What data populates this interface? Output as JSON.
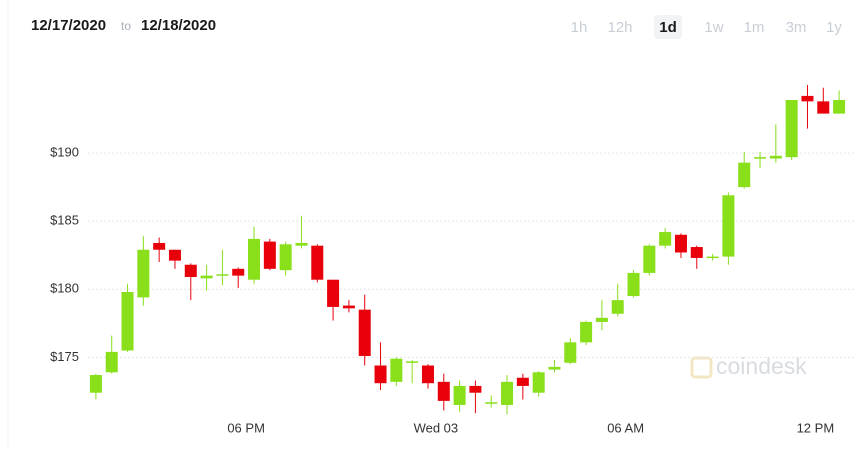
{
  "header": {
    "from": "12/17/2020",
    "separator": "to",
    "to": "12/18/2020",
    "ranges": [
      "1h",
      "12h",
      "1d",
      "1w",
      "1m",
      "3m",
      "1y"
    ],
    "active_range": "1d"
  },
  "chart_data": {
    "type": "candlestick",
    "categories": [
      null,
      null,
      null,
      null,
      null,
      null,
      null,
      null,
      null,
      null,
      "06 PM",
      null,
      null,
      null,
      null,
      null,
      null,
      null,
      null,
      null,
      null,
      null,
      "Wed 03",
      null,
      null,
      null,
      null,
      null,
      null,
      null,
      null,
      null,
      null,
      null,
      "06 AM",
      null,
      null,
      null,
      null,
      null,
      null,
      null,
      null,
      null,
      null,
      null,
      "12 PM",
      null
    ],
    "open": [
      172.4,
      173.9,
      175.5,
      179.4,
      183.4,
      182.9,
      181.8,
      180.8,
      181.0,
      181.5,
      180.7,
      183.5,
      181.4,
      183.2,
      183.2,
      180.7,
      178.8,
      178.5,
      174.4,
      173.2,
      174.6,
      174.4,
      173.2,
      171.5,
      172.9,
      171.6,
      171.5,
      173.5,
      172.4,
      174.1,
      174.6,
      176.1,
      177.6,
      178.2,
      179.5,
      181.2,
      183.2,
      184.0,
      183.1,
      182.3,
      182.4,
      187.5,
      189.6,
      189.6,
      189.7,
      194.2,
      193.8,
      192.9
    ],
    "high": [
      173.8,
      176.6,
      180.4,
      183.9,
      183.8,
      182.9,
      181.9,
      181.8,
      182.9,
      181.6,
      184.6,
      183.7,
      183.5,
      185.4,
      183.3,
      180.7,
      179.2,
      179.6,
      176.1,
      175.0,
      174.8,
      174.5,
      173.8,
      173.3,
      173.3,
      172.2,
      173.7,
      173.8,
      174.0,
      174.8,
      176.4,
      177.7,
      179.2,
      180.4,
      181.4,
      183.3,
      184.5,
      184.1,
      183.2,
      182.6,
      187.1,
      190.1,
      190.1,
      192.1,
      193.9,
      195.0,
      194.8,
      194.6
    ],
    "low": [
      171.9,
      173.8,
      175.4,
      178.8,
      182.0,
      181.5,
      179.2,
      179.9,
      180.3,
      180.1,
      180.4,
      181.4,
      181.0,
      183.0,
      180.5,
      177.7,
      178.3,
      174.4,
      172.6,
      172.9,
      173.1,
      172.7,
      171.1,
      171.0,
      170.9,
      171.3,
      170.8,
      171.9,
      172.1,
      173.9,
      174.5,
      175.9,
      177.0,
      178.0,
      179.4,
      181.0,
      183.0,
      182.3,
      181.5,
      182.1,
      181.8,
      187.4,
      188.9,
      189.3,
      189.5,
      191.8,
      192.9,
      192.9
    ],
    "close": [
      173.7,
      175.4,
      179.8,
      182.9,
      182.9,
      182.1,
      180.9,
      181.0,
      181.1,
      181.0,
      183.7,
      181.5,
      183.3,
      183.4,
      180.7,
      178.7,
      178.6,
      175.1,
      173.1,
      174.9,
      174.7,
      173.1,
      171.8,
      172.9,
      172.4,
      171.7,
      173.2,
      172.9,
      173.9,
      174.3,
      176.1,
      177.6,
      177.9,
      179.2,
      181.2,
      183.2,
      184.2,
      182.7,
      182.3,
      182.4,
      186.9,
      189.3,
      189.7,
      189.8,
      193.9,
      193.8,
      192.9,
      193.9
    ],
    "up_color": "#88df1a",
    "down_color": "#e8000b",
    "ylim": [
      170,
      196
    ],
    "yticks": [
      {
        "value": 175,
        "label": "$175"
      },
      {
        "value": 180,
        "label": "$180"
      },
      {
        "value": 185,
        "label": "$185"
      },
      {
        "value": 190,
        "label": "$190"
      }
    ],
    "grid": true,
    "watermark": "coindesk"
  }
}
